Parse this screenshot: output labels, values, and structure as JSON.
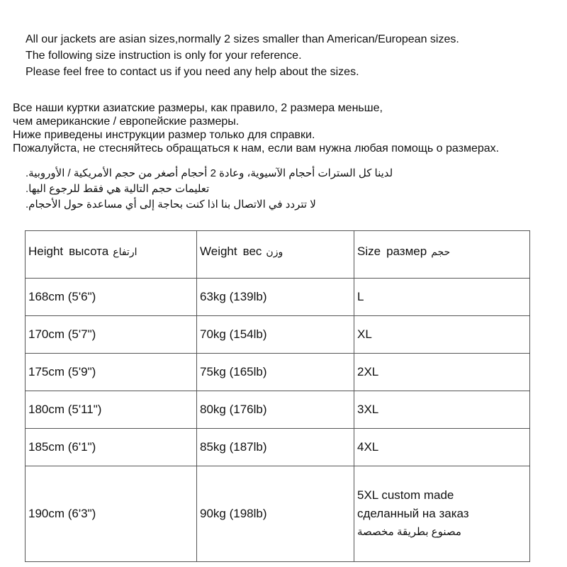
{
  "english": [
    "All our jackets are asian sizes,normally 2 sizes smaller than American/European sizes.",
    "The following size instruction is only for your reference.",
    "Please feel free to contact us if you need any help about the sizes."
  ],
  "russian": [
    "Все наши куртки азиатские размеры, как правило, 2 размера меньше,",
    "чем американские / европейские размеры.",
    "Ниже приведены инструкции размер только для справки.",
    "Пожалуйста, не стесняйтесь обращаться к нам, если вам нужна любая помощь о размерах."
  ],
  "arabic": [
    "لدينا كل السترات أحجام الآسيوية، وعادة 2 أحجام أصغر من حجم الأمريكية / الأوروبية.",
    "تعليمات حجم التالية هي فقط للرجوع اليها.",
    "لا تتردد في الاتصال بنا اذا كنت بحاجة إلى أي مساعدة حول الأحجام."
  ],
  "table": {
    "headers": [
      {
        "en": "Height",
        "ru": "высота",
        "ar": "ارتفاع"
      },
      {
        "en": "Weight",
        "ru": "вес",
        "ar": "وزن"
      },
      {
        "en": "Size",
        "ru": "размер",
        "ar": "حجم"
      }
    ],
    "rows": [
      [
        "168cm (5'6\")",
        "63kg  (139lb)",
        "L"
      ],
      [
        "170cm  (5'7\")",
        "70kg  (154lb)",
        "XL"
      ],
      [
        "175cm  (5'9\")",
        "75kg  (165lb)",
        "2XL"
      ],
      [
        "180cm  (5'11\")",
        "80kg  (176lb)",
        "3XL"
      ],
      [
        "185cm  (6'1\")",
        "85kg  (187lb)",
        "4XL"
      ]
    ],
    "last_row": {
      "height": "190cm  (6'3\")",
      "weight": "90kg  (198lb)",
      "size_lines": [
        "5XL custom made",
        "сделанный на заказ",
        "مصنوع بطريقة مخصصة"
      ]
    }
  }
}
